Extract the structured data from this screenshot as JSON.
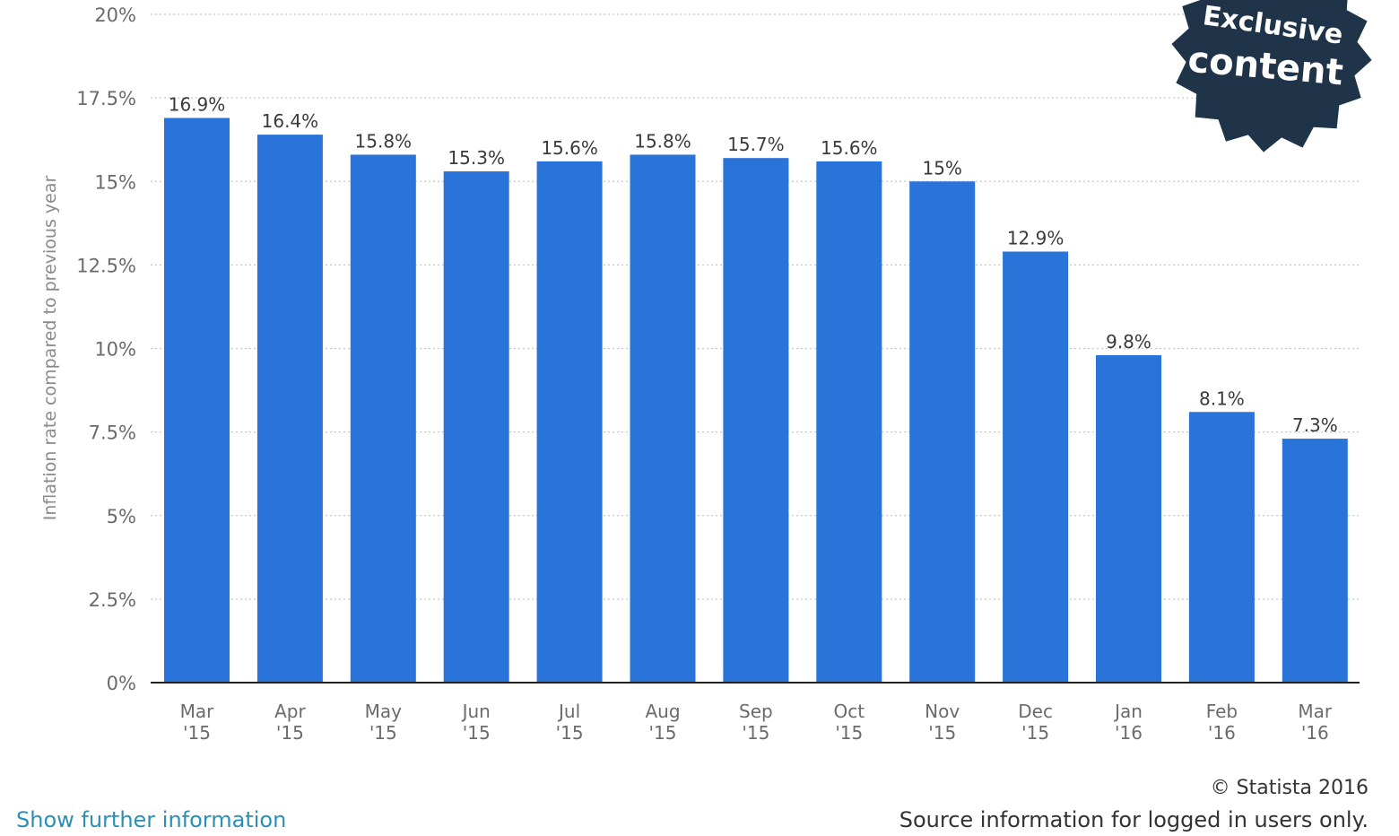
{
  "chart_data": {
    "type": "bar",
    "categories": [
      [
        "Mar",
        "'15"
      ],
      [
        "Apr",
        "'15"
      ],
      [
        "May",
        "'15"
      ],
      [
        "Jun",
        "'15"
      ],
      [
        "Jul",
        "'15"
      ],
      [
        "Aug",
        "'15"
      ],
      [
        "Sep",
        "'15"
      ],
      [
        "Oct",
        "'15"
      ],
      [
        "Nov",
        "'15"
      ],
      [
        "Dec",
        "'15"
      ],
      [
        "Jan",
        "'16"
      ],
      [
        "Feb",
        "'16"
      ],
      [
        "Mar",
        "'16"
      ]
    ],
    "values": [
      16.9,
      16.4,
      15.8,
      15.3,
      15.6,
      15.8,
      15.7,
      15.6,
      15.0,
      12.9,
      9.8,
      8.1,
      7.3
    ],
    "data_labels": [
      "16.9%",
      "16.4%",
      "15.8%",
      "15.3%",
      "15.6%",
      "15.8%",
      "15.7%",
      "15.6%",
      "15%",
      "12.9%",
      "9.8%",
      "8.1%",
      "7.3%"
    ],
    "ylabel": "Inflation rate compared to previous year",
    "ylim": [
      0,
      20
    ],
    "yticks": [
      0,
      2.5,
      5,
      7.5,
      10,
      12.5,
      15,
      17.5,
      20
    ],
    "ytick_labels": [
      "0%",
      "2.5%",
      "5%",
      "7.5%",
      "10%",
      "12.5%",
      "15%",
      "17.5%",
      "20%"
    ],
    "grid": true,
    "bar_color": "#2a73d9"
  },
  "badge": {
    "line1": "Exclusive",
    "line2": "content",
    "color": "#1f3448"
  },
  "links": {
    "show_more": "Show further information"
  },
  "footer": {
    "copyright": "© Statista 2016",
    "source": "Source information for logged in users only."
  }
}
